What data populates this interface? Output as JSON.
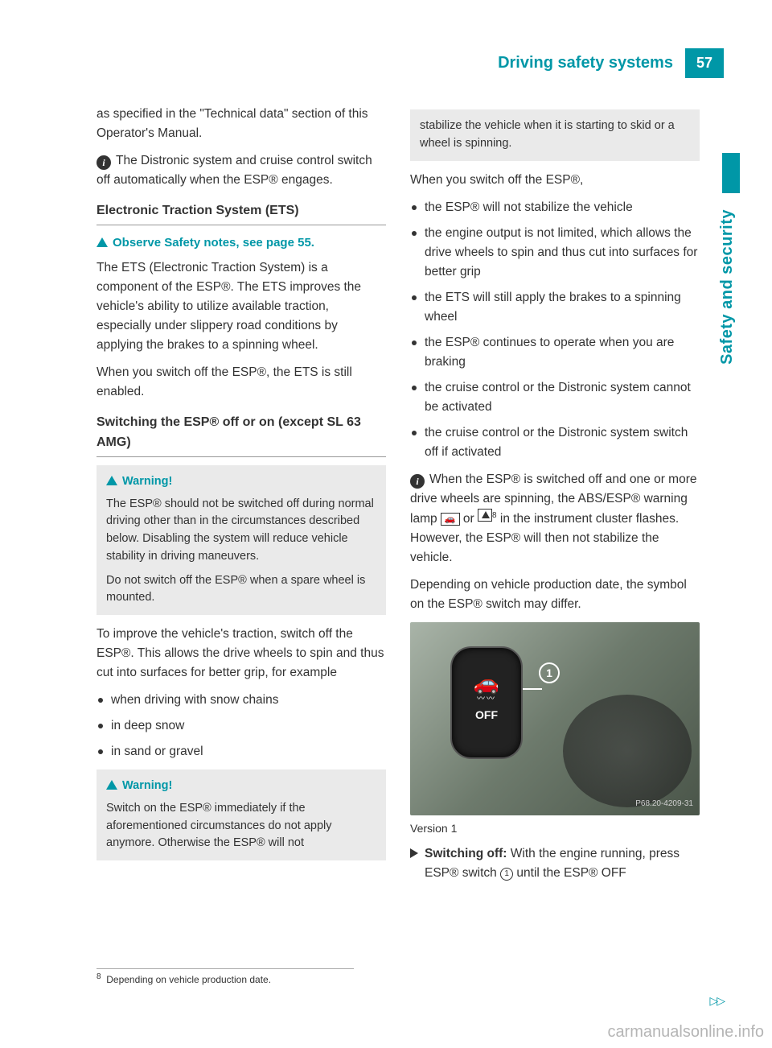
{
  "header": {
    "section_title": "Driving safety systems",
    "page_number": "57",
    "side_label": "Safety and security"
  },
  "col1": {
    "intro": "as specified in the \"Technical data\" section of this Operator's Manual.",
    "info1": "The Distronic system and cruise control switch off automatically when the ESP® engages.",
    "h_ets": "Electronic Traction System (ETS)",
    "safety_note": "Observe Safety notes, see page 55.",
    "ets_p1": "The ETS (Electronic Traction System) is a component of the ESP®. The ETS improves the vehicle's ability to utilize available traction, especially under slippery road conditions by applying the brakes to a spinning wheel.",
    "ets_p2": "When you switch off the ESP®, the ETS is still enabled.",
    "h_switch": "Switching the ESP® off or on (except SL 63 AMG)",
    "warn1_head": "Warning!",
    "warn1_p1": "The ESP® should not be switched off during normal driving other than in the circumstances described below. Disabling the system will reduce vehicle stability in driving maneuvers.",
    "warn1_p2": "Do not switch off the ESP® when a spare wheel is mounted.",
    "traction_p": "To improve the vehicle's traction, switch off the ESP®. This allows the drive wheels to spin and thus cut into surfaces for better grip, for example",
    "bullets": [
      "when driving with snow chains",
      "in deep snow",
      "in sand or gravel"
    ],
    "warn2_head": "Warning!",
    "warn2_p1": "Switch on the ESP® immediately if the aforementioned circumstances do not apply anymore. Otherwise the ESP® will not"
  },
  "col2": {
    "warn2_cont": "stabilize the vehicle when it is starting to skid or a wheel is spinning.",
    "list_intro": "When you switch off the ESP®,",
    "list": [
      "the ESP® will not stabilize the vehicle",
      "the engine output is not limited, which allows the drive wheels to spin and thus cut into surfaces for better grip",
      "the ETS will still apply the brakes to a spinning wheel",
      "the ESP® continues to operate when you are braking",
      "the cruise control or the Distronic system cannot be activated",
      "the cruise control or the Distronic system switch off if activated"
    ],
    "info2_a": "When the ESP® is switched off and one or more drive wheels are spinning, the ABS/ESP® warning lamp ",
    "info2_b": " or ",
    "info2_foot": "8",
    "info2_c": " in the instrument cluster flashes. However, the ESP® will then not stabilize the vehicle.",
    "depend_p": "Depending on vehicle production date, the symbol on the ESP® switch may differ.",
    "fig": {
      "off_label": "OFF",
      "callout": "1",
      "code": "P68.20-4209-31",
      "caption": "Version 1"
    },
    "step_a": "Switching off:",
    "step_b": " With the engine running, press ESP® switch ",
    "step_c": " until the ESP® OFF"
  },
  "footnote": {
    "num": "8",
    "text": "Depending on vehicle production date."
  },
  "page_turn": "▷▷",
  "watermark": "carmanualsonline.info",
  "icons": {
    "car": "🚗"
  }
}
